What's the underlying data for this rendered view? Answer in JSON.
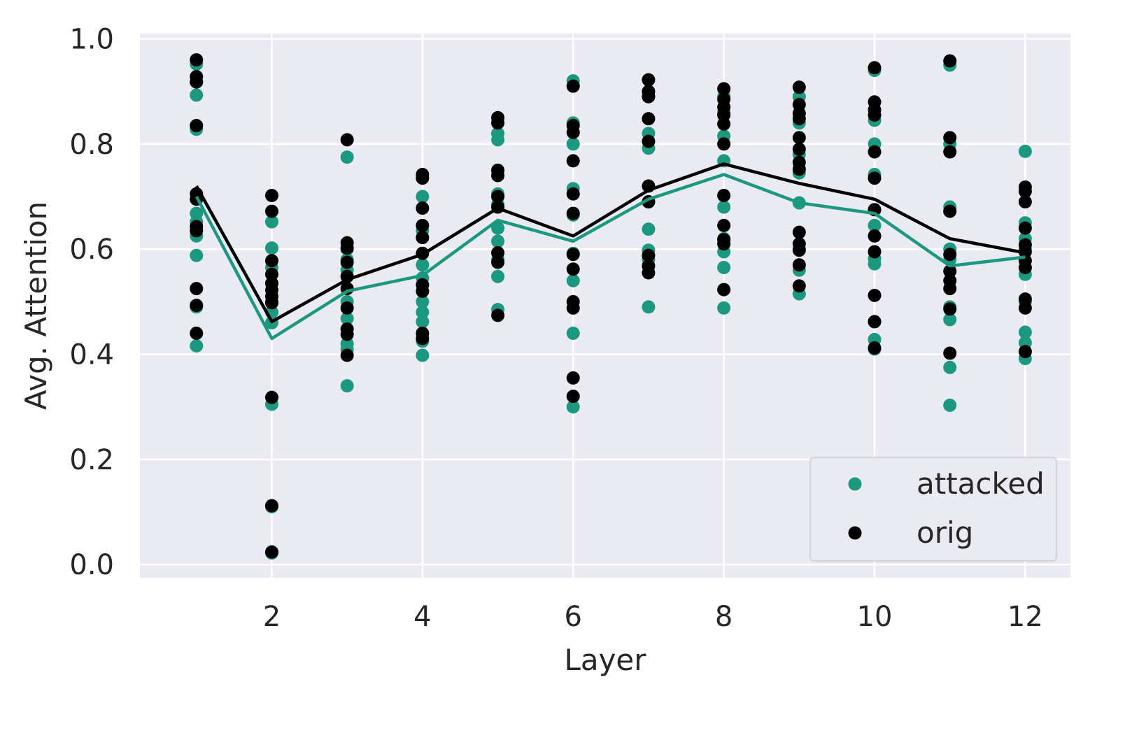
{
  "chart_data": {
    "type": "scatter",
    "xlabel": "Layer",
    "ylabel": "Avg. Attention",
    "xlim": [
      0.25,
      12.6
    ],
    "ylim": [
      -0.025,
      1.01
    ],
    "xticks": [
      2,
      4,
      6,
      8,
      10,
      12
    ],
    "xtick_labels": [
      "2",
      "4",
      "6",
      "8",
      "10",
      "12"
    ],
    "yticks": [
      0.0,
      0.2,
      0.4,
      0.6,
      0.8,
      1.0
    ],
    "ytick_labels": [
      "0.0",
      "0.2",
      "0.4",
      "0.6",
      "0.8",
      "1.0"
    ],
    "grid": true,
    "legend_position": "bottom-right",
    "series": [
      {
        "name": "attacked",
        "color": "#1a9980",
        "points": [
          [
            1,
            0.952
          ],
          [
            1,
            0.918
          ],
          [
            1,
            0.893
          ],
          [
            1,
            0.828
          ],
          [
            1,
            0.695
          ],
          [
            1,
            0.668
          ],
          [
            1,
            0.652
          ],
          [
            1,
            0.625
          ],
          [
            1,
            0.588
          ],
          [
            1,
            0.49
          ],
          [
            1,
            0.416
          ],
          [
            2,
            0.652
          ],
          [
            2,
            0.602
          ],
          [
            2,
            0.565
          ],
          [
            2,
            0.535
          ],
          [
            2,
            0.5
          ],
          [
            2,
            0.48
          ],
          [
            2,
            0.46
          ],
          [
            2,
            0.305
          ],
          [
            2,
            0.11
          ],
          [
            2,
            0.022
          ],
          [
            3,
            0.775
          ],
          [
            3,
            0.6
          ],
          [
            3,
            0.58
          ],
          [
            3,
            0.56
          ],
          [
            3,
            0.5
          ],
          [
            3,
            0.468
          ],
          [
            3,
            0.42
          ],
          [
            3,
            0.41
          ],
          [
            3,
            0.34
          ],
          [
            4,
            0.7
          ],
          [
            4,
            0.635
          ],
          [
            4,
            0.57
          ],
          [
            4,
            0.545
          ],
          [
            4,
            0.5
          ],
          [
            4,
            0.48
          ],
          [
            4,
            0.462
          ],
          [
            4,
            0.425
          ],
          [
            4,
            0.398
          ],
          [
            5,
            0.82
          ],
          [
            5,
            0.808
          ],
          [
            5,
            0.705
          ],
          [
            5,
            0.685
          ],
          [
            5,
            0.64
          ],
          [
            5,
            0.615
          ],
          [
            5,
            0.58
          ],
          [
            5,
            0.548
          ],
          [
            5,
            0.485
          ],
          [
            6,
            0.92
          ],
          [
            6,
            0.84
          ],
          [
            6,
            0.8
          ],
          [
            6,
            0.715
          ],
          [
            6,
            0.665
          ],
          [
            6,
            0.592
          ],
          [
            6,
            0.54
          ],
          [
            6,
            0.44
          ],
          [
            6,
            0.3
          ],
          [
            7,
            0.89
          ],
          [
            7,
            0.82
          ],
          [
            7,
            0.792
          ],
          [
            7,
            0.69
          ],
          [
            7,
            0.638
          ],
          [
            7,
            0.598
          ],
          [
            7,
            0.58
          ],
          [
            7,
            0.49
          ],
          [
            8,
            0.89
          ],
          [
            8,
            0.86
          ],
          [
            8,
            0.815
          ],
          [
            8,
            0.768
          ],
          [
            8,
            0.68
          ],
          [
            8,
            0.62
          ],
          [
            8,
            0.595
          ],
          [
            8,
            0.565
          ],
          [
            8,
            0.488
          ],
          [
            9,
            0.89
          ],
          [
            9,
            0.84
          ],
          [
            9,
            0.78
          ],
          [
            9,
            0.745
          ],
          [
            9,
            0.688
          ],
          [
            9,
            0.6
          ],
          [
            9,
            0.56
          ],
          [
            9,
            0.515
          ],
          [
            10,
            0.94
          ],
          [
            10,
            0.845
          ],
          [
            10,
            0.8
          ],
          [
            10,
            0.742
          ],
          [
            10,
            0.645
          ],
          [
            10,
            0.582
          ],
          [
            10,
            0.572
          ],
          [
            10,
            0.462
          ],
          [
            10,
            0.428
          ],
          [
            10,
            0.41
          ],
          [
            11,
            0.95
          ],
          [
            11,
            0.8
          ],
          [
            11,
            0.68
          ],
          [
            11,
            0.6
          ],
          [
            11,
            0.58
          ],
          [
            11,
            0.49
          ],
          [
            11,
            0.466
          ],
          [
            11,
            0.375
          ],
          [
            11,
            0.303
          ],
          [
            12,
            0.786
          ],
          [
            12,
            0.65
          ],
          [
            12,
            0.62
          ],
          [
            12,
            0.6
          ],
          [
            12,
            0.552
          ],
          [
            12,
            0.5
          ],
          [
            12,
            0.442
          ],
          [
            12,
            0.422
          ],
          [
            12,
            0.392
          ]
        ],
        "line": [
          [
            1,
            0.7
          ],
          [
            2,
            0.43
          ],
          [
            3,
            0.52
          ],
          [
            4,
            0.55
          ],
          [
            5,
            0.655
          ],
          [
            6,
            0.615
          ],
          [
            7,
            0.695
          ],
          [
            8,
            0.742
          ],
          [
            9,
            0.688
          ],
          [
            10,
            0.668
          ],
          [
            11,
            0.568
          ],
          [
            12,
            0.585
          ]
        ]
      },
      {
        "name": "orig",
        "color": "#000000",
        "points": [
          [
            1,
            0.96
          ],
          [
            1,
            0.928
          ],
          [
            1,
            0.918
          ],
          [
            1,
            0.835
          ],
          [
            1,
            0.705
          ],
          [
            1,
            0.695
          ],
          [
            1,
            0.643
          ],
          [
            1,
            0.635
          ],
          [
            1,
            0.525
          ],
          [
            1,
            0.493
          ],
          [
            1,
            0.44
          ],
          [
            2,
            0.702
          ],
          [
            2,
            0.672
          ],
          [
            2,
            0.578
          ],
          [
            2,
            0.552
          ],
          [
            2,
            0.535
          ],
          [
            2,
            0.522
          ],
          [
            2,
            0.51
          ],
          [
            2,
            0.498
          ],
          [
            2,
            0.318
          ],
          [
            2,
            0.112
          ],
          [
            2,
            0.024
          ],
          [
            3,
            0.808
          ],
          [
            3,
            0.612
          ],
          [
            3,
            0.602
          ],
          [
            3,
            0.575
          ],
          [
            3,
            0.548
          ],
          [
            3,
            0.525
          ],
          [
            3,
            0.488
          ],
          [
            3,
            0.448
          ],
          [
            3,
            0.438
          ],
          [
            3,
            0.398
          ],
          [
            4,
            0.742
          ],
          [
            4,
            0.735
          ],
          [
            4,
            0.678
          ],
          [
            4,
            0.645
          ],
          [
            4,
            0.622
          ],
          [
            4,
            0.592
          ],
          [
            4,
            0.532
          ],
          [
            4,
            0.52
          ],
          [
            4,
            0.44
          ],
          [
            4,
            0.43
          ],
          [
            5,
            0.85
          ],
          [
            5,
            0.84
          ],
          [
            5,
            0.75
          ],
          [
            5,
            0.74
          ],
          [
            5,
            0.7
          ],
          [
            5,
            0.68
          ],
          [
            5,
            0.593
          ],
          [
            5,
            0.575
          ],
          [
            5,
            0.474
          ],
          [
            6,
            0.91
          ],
          [
            6,
            0.835
          ],
          [
            6,
            0.822
          ],
          [
            6,
            0.768
          ],
          [
            6,
            0.705
          ],
          [
            6,
            0.668
          ],
          [
            6,
            0.59
          ],
          [
            6,
            0.562
          ],
          [
            6,
            0.5
          ],
          [
            6,
            0.488
          ],
          [
            6,
            0.355
          ],
          [
            6,
            0.32
          ],
          [
            7,
            0.922
          ],
          [
            7,
            0.9
          ],
          [
            7,
            0.89
          ],
          [
            7,
            0.848
          ],
          [
            7,
            0.805
          ],
          [
            7,
            0.72
          ],
          [
            7,
            0.69
          ],
          [
            7,
            0.588
          ],
          [
            7,
            0.568
          ],
          [
            7,
            0.555
          ],
          [
            8,
            0.905
          ],
          [
            8,
            0.885
          ],
          [
            8,
            0.87
          ],
          [
            8,
            0.855
          ],
          [
            8,
            0.838
          ],
          [
            8,
            0.8
          ],
          [
            8,
            0.702
          ],
          [
            8,
            0.645
          ],
          [
            8,
            0.618
          ],
          [
            8,
            0.61
          ],
          [
            8,
            0.523
          ],
          [
            9,
            0.908
          ],
          [
            9,
            0.875
          ],
          [
            9,
            0.858
          ],
          [
            9,
            0.848
          ],
          [
            9,
            0.812
          ],
          [
            9,
            0.79
          ],
          [
            9,
            0.765
          ],
          [
            9,
            0.752
          ],
          [
            9,
            0.632
          ],
          [
            9,
            0.61
          ],
          [
            9,
            0.598
          ],
          [
            9,
            0.57
          ],
          [
            9,
            0.53
          ],
          [
            10,
            0.945
          ],
          [
            10,
            0.88
          ],
          [
            10,
            0.865
          ],
          [
            10,
            0.855
          ],
          [
            10,
            0.785
          ],
          [
            10,
            0.735
          ],
          [
            10,
            0.675
          ],
          [
            10,
            0.625
          ],
          [
            10,
            0.595
          ],
          [
            10,
            0.512
          ],
          [
            10,
            0.462
          ],
          [
            10,
            0.412
          ],
          [
            11,
            0.958
          ],
          [
            11,
            0.812
          ],
          [
            11,
            0.785
          ],
          [
            11,
            0.672
          ],
          [
            11,
            0.59
          ],
          [
            11,
            0.558
          ],
          [
            11,
            0.54
          ],
          [
            11,
            0.525
          ],
          [
            11,
            0.486
          ],
          [
            11,
            0.402
          ],
          [
            12,
            0.718
          ],
          [
            12,
            0.71
          ],
          [
            12,
            0.69
          ],
          [
            12,
            0.64
          ],
          [
            12,
            0.608
          ],
          [
            12,
            0.595
          ],
          [
            12,
            0.578
          ],
          [
            12,
            0.565
          ],
          [
            12,
            0.505
          ],
          [
            12,
            0.488
          ],
          [
            12,
            0.405
          ]
        ],
        "line": [
          [
            1,
            0.72
          ],
          [
            2,
            0.462
          ],
          [
            3,
            0.542
          ],
          [
            4,
            0.59
          ],
          [
            5,
            0.678
          ],
          [
            6,
            0.625
          ],
          [
            7,
            0.712
          ],
          [
            8,
            0.762
          ],
          [
            9,
            0.725
          ],
          [
            10,
            0.695
          ],
          [
            11,
            0.62
          ],
          [
            12,
            0.593
          ]
        ]
      }
    ]
  }
}
